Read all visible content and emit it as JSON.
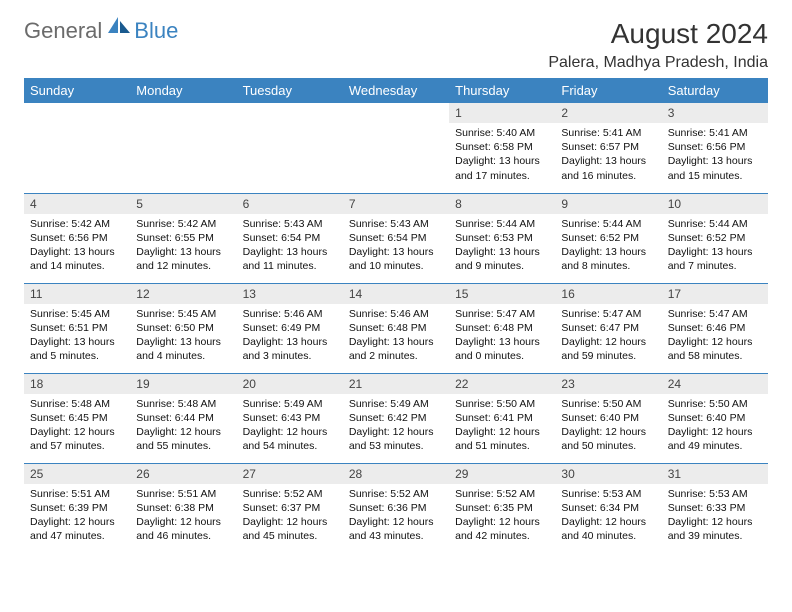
{
  "logo": {
    "general": "General",
    "blue": "Blue"
  },
  "title": "August 2024",
  "location": "Palera, Madhya Pradesh, India",
  "colors": {
    "header_bg": "#3b83c0",
    "daynum_bg": "#ececec"
  },
  "weekdays": [
    "Sunday",
    "Monday",
    "Tuesday",
    "Wednesday",
    "Thursday",
    "Friday",
    "Saturday"
  ],
  "weeks": [
    [
      null,
      null,
      null,
      null,
      {
        "n": "1",
        "sr": "5:40 AM",
        "ss": "6:58 PM",
        "d1": "13 hours",
        "d2": "and 17 minutes."
      },
      {
        "n": "2",
        "sr": "5:41 AM",
        "ss": "6:57 PM",
        "d1": "13 hours",
        "d2": "and 16 minutes."
      },
      {
        "n": "3",
        "sr": "5:41 AM",
        "ss": "6:56 PM",
        "d1": "13 hours",
        "d2": "and 15 minutes."
      }
    ],
    [
      {
        "n": "4",
        "sr": "5:42 AM",
        "ss": "6:56 PM",
        "d1": "13 hours",
        "d2": "and 14 minutes."
      },
      {
        "n": "5",
        "sr": "5:42 AM",
        "ss": "6:55 PM",
        "d1": "13 hours",
        "d2": "and 12 minutes."
      },
      {
        "n": "6",
        "sr": "5:43 AM",
        "ss": "6:54 PM",
        "d1": "13 hours",
        "d2": "and 11 minutes."
      },
      {
        "n": "7",
        "sr": "5:43 AM",
        "ss": "6:54 PM",
        "d1": "13 hours",
        "d2": "and 10 minutes."
      },
      {
        "n": "8",
        "sr": "5:44 AM",
        "ss": "6:53 PM",
        "d1": "13 hours",
        "d2": "and 9 minutes."
      },
      {
        "n": "9",
        "sr": "5:44 AM",
        "ss": "6:52 PM",
        "d1": "13 hours",
        "d2": "and 8 minutes."
      },
      {
        "n": "10",
        "sr": "5:44 AM",
        "ss": "6:52 PM",
        "d1": "13 hours",
        "d2": "and 7 minutes."
      }
    ],
    [
      {
        "n": "11",
        "sr": "5:45 AM",
        "ss": "6:51 PM",
        "d1": "13 hours",
        "d2": "and 5 minutes."
      },
      {
        "n": "12",
        "sr": "5:45 AM",
        "ss": "6:50 PM",
        "d1": "13 hours",
        "d2": "and 4 minutes."
      },
      {
        "n": "13",
        "sr": "5:46 AM",
        "ss": "6:49 PM",
        "d1": "13 hours",
        "d2": "and 3 minutes."
      },
      {
        "n": "14",
        "sr": "5:46 AM",
        "ss": "6:48 PM",
        "d1": "13 hours",
        "d2": "and 2 minutes."
      },
      {
        "n": "15",
        "sr": "5:47 AM",
        "ss": "6:48 PM",
        "d1": "13 hours",
        "d2": "and 0 minutes."
      },
      {
        "n": "16",
        "sr": "5:47 AM",
        "ss": "6:47 PM",
        "d1": "12 hours",
        "d2": "and 59 minutes."
      },
      {
        "n": "17",
        "sr": "5:47 AM",
        "ss": "6:46 PM",
        "d1": "12 hours",
        "d2": "and 58 minutes."
      }
    ],
    [
      {
        "n": "18",
        "sr": "5:48 AM",
        "ss": "6:45 PM",
        "d1": "12 hours",
        "d2": "and 57 minutes."
      },
      {
        "n": "19",
        "sr": "5:48 AM",
        "ss": "6:44 PM",
        "d1": "12 hours",
        "d2": "and 55 minutes."
      },
      {
        "n": "20",
        "sr": "5:49 AM",
        "ss": "6:43 PM",
        "d1": "12 hours",
        "d2": "and 54 minutes."
      },
      {
        "n": "21",
        "sr": "5:49 AM",
        "ss": "6:42 PM",
        "d1": "12 hours",
        "d2": "and 53 minutes."
      },
      {
        "n": "22",
        "sr": "5:50 AM",
        "ss": "6:41 PM",
        "d1": "12 hours",
        "d2": "and 51 minutes."
      },
      {
        "n": "23",
        "sr": "5:50 AM",
        "ss": "6:40 PM",
        "d1": "12 hours",
        "d2": "and 50 minutes."
      },
      {
        "n": "24",
        "sr": "5:50 AM",
        "ss": "6:40 PM",
        "d1": "12 hours",
        "d2": "and 49 minutes."
      }
    ],
    [
      {
        "n": "25",
        "sr": "5:51 AM",
        "ss": "6:39 PM",
        "d1": "12 hours",
        "d2": "and 47 minutes."
      },
      {
        "n": "26",
        "sr": "5:51 AM",
        "ss": "6:38 PM",
        "d1": "12 hours",
        "d2": "and 46 minutes."
      },
      {
        "n": "27",
        "sr": "5:52 AM",
        "ss": "6:37 PM",
        "d1": "12 hours",
        "d2": "and 45 minutes."
      },
      {
        "n": "28",
        "sr": "5:52 AM",
        "ss": "6:36 PM",
        "d1": "12 hours",
        "d2": "and 43 minutes."
      },
      {
        "n": "29",
        "sr": "5:52 AM",
        "ss": "6:35 PM",
        "d1": "12 hours",
        "d2": "and 42 minutes."
      },
      {
        "n": "30",
        "sr": "5:53 AM",
        "ss": "6:34 PM",
        "d1": "12 hours",
        "d2": "and 40 minutes."
      },
      {
        "n": "31",
        "sr": "5:53 AM",
        "ss": "6:33 PM",
        "d1": "12 hours",
        "d2": "and 39 minutes."
      }
    ]
  ]
}
